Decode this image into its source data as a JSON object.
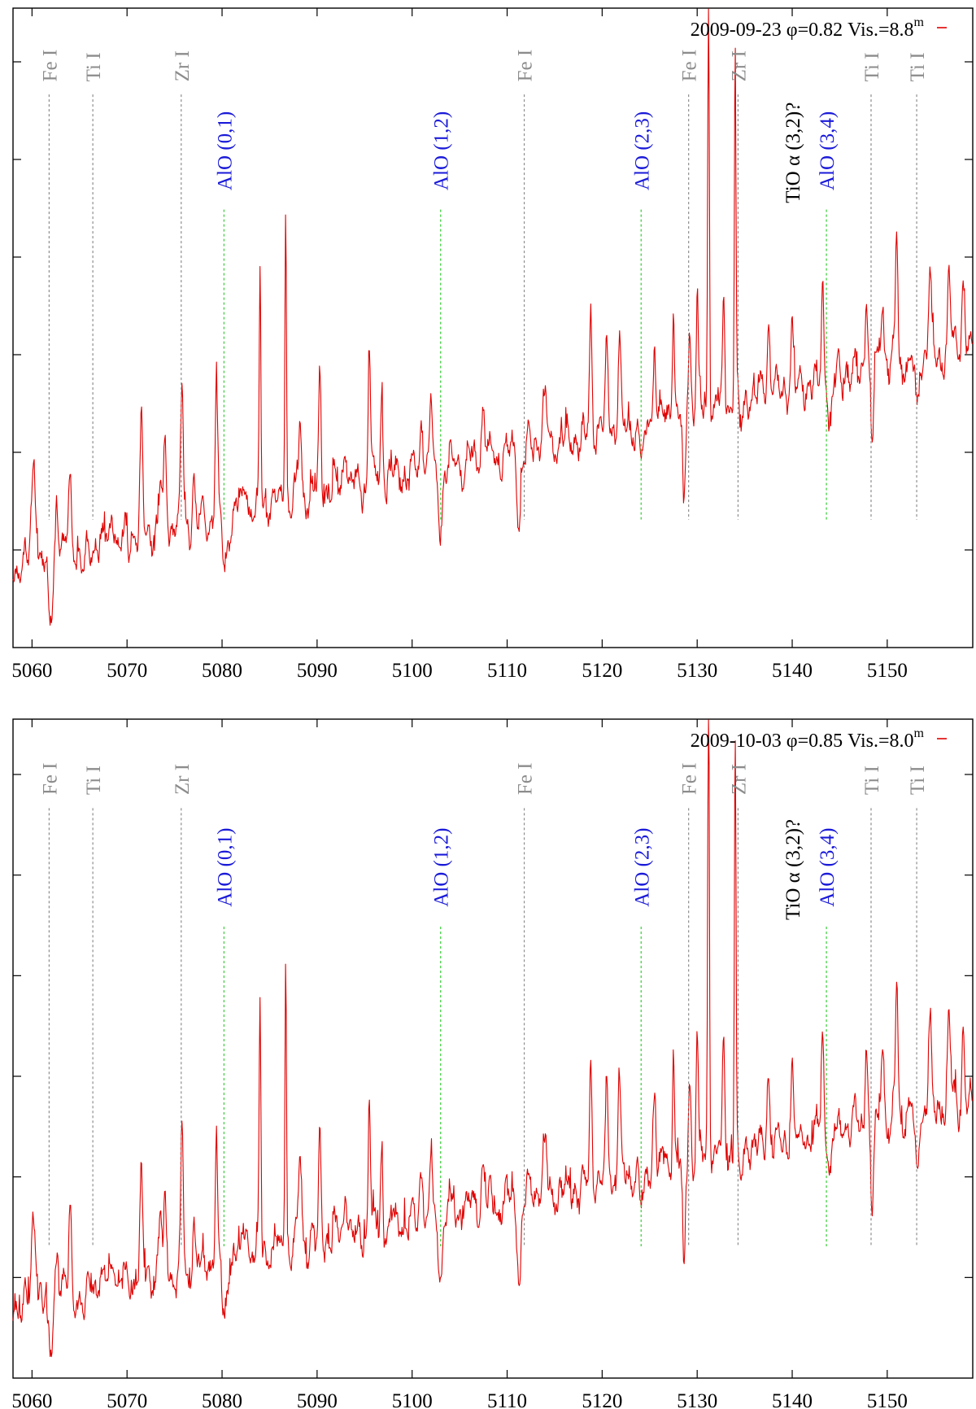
{
  "chart_data": [
    {
      "type": "line",
      "legend": {
        "label": "2009-09-23 φ=0.82 Vis.=8.8",
        "superscript": "m",
        "color": "#e00000",
        "position": "top-right"
      },
      "xlim": [
        5058,
        5159
      ],
      "ylim": [
        0,
        1
      ],
      "xticks": [
        5060,
        5070,
        5080,
        5090,
        5100,
        5110,
        5120,
        5130,
        5140,
        5150
      ],
      "xlabel": "",
      "ylabel": "",
      "trend": {
        "start": 0.13,
        "end": 0.47
      },
      "noise_amplitude": 0.03,
      "seed": 11,
      "features": [
        {
          "x": 5060.2,
          "a": 0.16,
          "w": 0.3
        },
        {
          "x": 5061.9,
          "a": -0.1,
          "w": 0.35
        },
        {
          "x": 5062.6,
          "a": 0.09,
          "w": 0.25
        },
        {
          "x": 5064.0,
          "a": 0.12,
          "w": 0.2
        },
        {
          "x": 5065.5,
          "a": -0.04,
          "w": 0.3
        },
        {
          "x": 5068.5,
          "a": 0.05,
          "w": 0.3
        },
        {
          "x": 5071.5,
          "a": 0.16,
          "w": 0.18
        },
        {
          "x": 5073.5,
          "a": 0.08,
          "w": 0.2
        },
        {
          "x": 5074.0,
          "a": 0.12,
          "w": 0.18
        },
        {
          "x": 5075.8,
          "a": 0.23,
          "w": 0.18
        },
        {
          "x": 5077.0,
          "a": 0.07,
          "w": 0.2
        },
        {
          "x": 5079.4,
          "a": 0.2,
          "w": 0.18
        },
        {
          "x": 5080.3,
          "a": -0.09,
          "w": 0.35
        },
        {
          "x": 5082.5,
          "a": 0.07,
          "w": 0.25
        },
        {
          "x": 5084.0,
          "a": 0.39,
          "w": 0.13
        },
        {
          "x": 5086.7,
          "a": 0.47,
          "w": 0.12
        },
        {
          "x": 5088.2,
          "a": 0.12,
          "w": 0.2
        },
        {
          "x": 5090.3,
          "a": 0.18,
          "w": 0.18
        },
        {
          "x": 5093.0,
          "a": 0.08,
          "w": 0.25
        },
        {
          "x": 5095.5,
          "a": 0.22,
          "w": 0.16
        },
        {
          "x": 5096.8,
          "a": 0.14,
          "w": 0.18
        },
        {
          "x": 5101.0,
          "a": 0.08,
          "w": 0.25
        },
        {
          "x": 5102.0,
          "a": 0.1,
          "w": 0.2
        },
        {
          "x": 5103.0,
          "a": -0.08,
          "w": 0.35
        },
        {
          "x": 5107.5,
          "a": 0.07,
          "w": 0.25
        },
        {
          "x": 5111.3,
          "a": -0.12,
          "w": 0.25
        },
        {
          "x": 5114.0,
          "a": 0.06,
          "w": 0.3
        },
        {
          "x": 5118.8,
          "a": 0.18,
          "w": 0.18
        },
        {
          "x": 5120.5,
          "a": 0.12,
          "w": 0.2
        },
        {
          "x": 5121.8,
          "a": 0.15,
          "w": 0.2
        },
        {
          "x": 5124.3,
          "a": -0.07,
          "w": 0.35
        },
        {
          "x": 5125.5,
          "a": 0.12,
          "w": 0.2
        },
        {
          "x": 5127.5,
          "a": 0.17,
          "w": 0.16
        },
        {
          "x": 5128.6,
          "a": -0.17,
          "w": 0.2
        },
        {
          "x": 5129.2,
          "a": 0.14,
          "w": 0.18
        },
        {
          "x": 5130.0,
          "a": 0.18,
          "w": 0.16
        },
        {
          "x": 5131.2,
          "a": 0.67,
          "w": 0.12
        },
        {
          "x": 5132.8,
          "a": 0.16,
          "w": 0.16
        },
        {
          "x": 5134.0,
          "a": 0.57,
          "w": 0.12
        },
        {
          "x": 5134.6,
          "a": -0.06,
          "w": 0.25
        },
        {
          "x": 5137.5,
          "a": 0.12,
          "w": 0.2
        },
        {
          "x": 5140.0,
          "a": 0.1,
          "w": 0.2
        },
        {
          "x": 5143.2,
          "a": 0.15,
          "w": 0.18
        },
        {
          "x": 5144.0,
          "a": -0.08,
          "w": 0.25
        },
        {
          "x": 5147.8,
          "a": 0.14,
          "w": 0.18
        },
        {
          "x": 5148.4,
          "a": -0.12,
          "w": 0.22
        },
        {
          "x": 5149.5,
          "a": 0.12,
          "w": 0.2
        },
        {
          "x": 5151.0,
          "a": 0.2,
          "w": 0.18
        },
        {
          "x": 5153.1,
          "a": -0.08,
          "w": 0.25
        },
        {
          "x": 5154.5,
          "a": 0.12,
          "w": 0.2
        },
        {
          "x": 5156.5,
          "a": 0.12,
          "w": 0.2
        },
        {
          "x": 5158.0,
          "a": 0.1,
          "w": 0.2
        }
      ],
      "annotations": [
        {
          "label": "Fe I",
          "x": 5061.8,
          "kind": "atomic"
        },
        {
          "label": "Ti I",
          "x": 5066.4,
          "kind": "atomic"
        },
        {
          "label": "Zr I",
          "x": 5075.7,
          "kind": "atomic"
        },
        {
          "label": "AlO (0,1)",
          "x": 5080.2,
          "kind": "alo"
        },
        {
          "label": "AlO (1,2)",
          "x": 5103.0,
          "kind": "alo"
        },
        {
          "label": "Fe I",
          "x": 5111.8,
          "kind": "atomic"
        },
        {
          "label": "AlO (2,3)",
          "x": 5124.1,
          "kind": "alo"
        },
        {
          "label": "Fe I",
          "x": 5129.1,
          "kind": "atomic"
        },
        {
          "label": "Zr I",
          "x": 5134.3,
          "kind": "atomic"
        },
        {
          "label": "TiO α (3,2)?",
          "x": 5140.0,
          "kind": "tio"
        },
        {
          "label": "AlO (3,4)",
          "x": 5143.6,
          "kind": "alo"
        },
        {
          "label": "Ti I",
          "x": 5148.3,
          "kind": "atomic"
        },
        {
          "label": "Ti I",
          "x": 5153.1,
          "kind": "atomic"
        }
      ]
    },
    {
      "type": "line",
      "legend": {
        "label": "2009-10-03 φ=0.85 Vis.=8.0",
        "superscript": "m",
        "color": "#e00000",
        "position": "top-right"
      },
      "xlim": [
        5058,
        5159
      ],
      "ylim": [
        0,
        1
      ],
      "xticks": [
        5060,
        5070,
        5080,
        5090,
        5100,
        5110,
        5120,
        5130,
        5140,
        5150
      ],
      "xlabel": "",
      "ylabel": "",
      "trend": {
        "start": 0.11,
        "end": 0.42
      },
      "noise_amplitude": 0.03,
      "seed": 29,
      "features": [
        {
          "x": 5060.2,
          "a": 0.14,
          "w": 0.3
        },
        {
          "x": 5061.9,
          "a": -0.09,
          "w": 0.35
        },
        {
          "x": 5062.6,
          "a": 0.08,
          "w": 0.25
        },
        {
          "x": 5064.0,
          "a": 0.12,
          "w": 0.2
        },
        {
          "x": 5065.5,
          "a": -0.04,
          "w": 0.3
        },
        {
          "x": 5068.5,
          "a": 0.05,
          "w": 0.3
        },
        {
          "x": 5071.5,
          "a": 0.16,
          "w": 0.18
        },
        {
          "x": 5073.5,
          "a": 0.08,
          "w": 0.2
        },
        {
          "x": 5074.0,
          "a": 0.11,
          "w": 0.18
        },
        {
          "x": 5075.8,
          "a": 0.22,
          "w": 0.18
        },
        {
          "x": 5077.0,
          "a": 0.07,
          "w": 0.2
        },
        {
          "x": 5079.4,
          "a": 0.18,
          "w": 0.18
        },
        {
          "x": 5080.3,
          "a": -0.08,
          "w": 0.35
        },
        {
          "x": 5082.5,
          "a": 0.07,
          "w": 0.25
        },
        {
          "x": 5084.0,
          "a": 0.38,
          "w": 0.13
        },
        {
          "x": 5086.7,
          "a": 0.46,
          "w": 0.12
        },
        {
          "x": 5088.2,
          "a": 0.12,
          "w": 0.2
        },
        {
          "x": 5090.3,
          "a": 0.17,
          "w": 0.18
        },
        {
          "x": 5093.0,
          "a": 0.08,
          "w": 0.25
        },
        {
          "x": 5095.5,
          "a": 0.22,
          "w": 0.16
        },
        {
          "x": 5096.8,
          "a": 0.14,
          "w": 0.18
        },
        {
          "x": 5101.0,
          "a": 0.08,
          "w": 0.25
        },
        {
          "x": 5102.0,
          "a": 0.09,
          "w": 0.2
        },
        {
          "x": 5103.0,
          "a": -0.08,
          "w": 0.35
        },
        {
          "x": 5107.5,
          "a": 0.07,
          "w": 0.25
        },
        {
          "x": 5111.3,
          "a": -0.13,
          "w": 0.25
        },
        {
          "x": 5114.0,
          "a": 0.06,
          "w": 0.3
        },
        {
          "x": 5118.8,
          "a": 0.19,
          "w": 0.18
        },
        {
          "x": 5120.5,
          "a": 0.13,
          "w": 0.2
        },
        {
          "x": 5121.8,
          "a": 0.16,
          "w": 0.2
        },
        {
          "x": 5124.3,
          "a": -0.07,
          "w": 0.35
        },
        {
          "x": 5125.5,
          "a": 0.13,
          "w": 0.2
        },
        {
          "x": 5127.5,
          "a": 0.18,
          "w": 0.16
        },
        {
          "x": 5128.6,
          "a": -0.18,
          "w": 0.2
        },
        {
          "x": 5129.2,
          "a": 0.15,
          "w": 0.18
        },
        {
          "x": 5130.0,
          "a": 0.19,
          "w": 0.16
        },
        {
          "x": 5131.2,
          "a": 0.74,
          "w": 0.12
        },
        {
          "x": 5132.8,
          "a": 0.17,
          "w": 0.16
        },
        {
          "x": 5134.0,
          "a": 0.64,
          "w": 0.12
        },
        {
          "x": 5134.6,
          "a": -0.06,
          "w": 0.25
        },
        {
          "x": 5137.5,
          "a": 0.12,
          "w": 0.2
        },
        {
          "x": 5140.0,
          "a": 0.11,
          "w": 0.2
        },
        {
          "x": 5143.2,
          "a": 0.16,
          "w": 0.18
        },
        {
          "x": 5144.0,
          "a": -0.08,
          "w": 0.25
        },
        {
          "x": 5147.8,
          "a": 0.15,
          "w": 0.18
        },
        {
          "x": 5148.4,
          "a": -0.13,
          "w": 0.22
        },
        {
          "x": 5149.5,
          "a": 0.13,
          "w": 0.2
        },
        {
          "x": 5151.0,
          "a": 0.21,
          "w": 0.18
        },
        {
          "x": 5153.1,
          "a": -0.09,
          "w": 0.25
        },
        {
          "x": 5154.5,
          "a": 0.13,
          "w": 0.2
        },
        {
          "x": 5156.5,
          "a": 0.13,
          "w": 0.2
        },
        {
          "x": 5158.0,
          "a": 0.11,
          "w": 0.2
        }
      ],
      "annotations": [
        {
          "label": "Fe I",
          "x": 5061.8,
          "kind": "atomic"
        },
        {
          "label": "Ti I",
          "x": 5066.4,
          "kind": "atomic"
        },
        {
          "label": "Zr I",
          "x": 5075.7,
          "kind": "atomic"
        },
        {
          "label": "AlO (0,1)",
          "x": 5080.2,
          "kind": "alo"
        },
        {
          "label": "AlO (1,2)",
          "x": 5103.0,
          "kind": "alo"
        },
        {
          "label": "Fe I",
          "x": 5111.8,
          "kind": "atomic"
        },
        {
          "label": "AlO (2,3)",
          "x": 5124.1,
          "kind": "alo"
        },
        {
          "label": "Fe I",
          "x": 5129.1,
          "kind": "atomic"
        },
        {
          "label": "Zr I",
          "x": 5134.3,
          "kind": "atomic"
        },
        {
          "label": "TiO α (3,2)?",
          "x": 5140.0,
          "kind": "tio"
        },
        {
          "label": "AlO (3,4)",
          "x": 5143.6,
          "kind": "alo"
        },
        {
          "label": "Ti I",
          "x": 5148.3,
          "kind": "atomic"
        },
        {
          "label": "Ti I",
          "x": 5153.1,
          "kind": "atomic"
        }
      ]
    }
  ]
}
